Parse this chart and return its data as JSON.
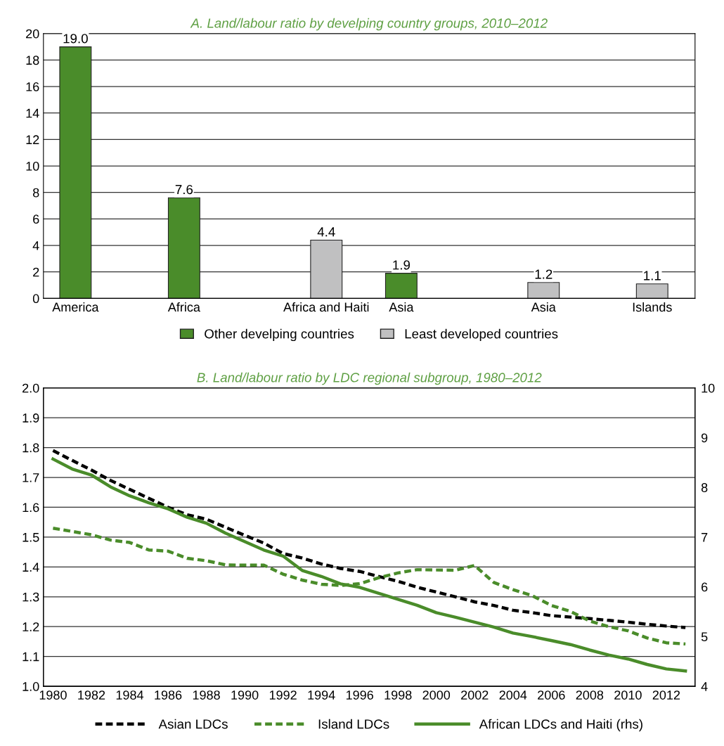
{
  "chart_data": [
    {
      "type": "bar",
      "title": "A. Land/labour ratio by develping country groups, 2010–2012",
      "categories": [
        "America",
        "Africa",
        "Africa and Haiti",
        "Asia",
        "Asia",
        "Islands"
      ],
      "series": [
        {
          "name": "Other develping countries",
          "color": "#4a8c2a",
          "values": [
            19.0,
            7.6,
            null,
            1.9,
            null,
            null
          ],
          "value_labels": [
            "19.0",
            "7.6",
            null,
            "1.9",
            null,
            null
          ]
        },
        {
          "name": "Least developed countries",
          "color": "#c0c0c1",
          "values": [
            null,
            null,
            4.4,
            null,
            1.2,
            1.1
          ],
          "value_labels": [
            null,
            null,
            "4.4",
            null,
            "1.2",
            "1.1"
          ]
        }
      ],
      "ylim": [
        0,
        20
      ],
      "yticks": [
        0,
        2,
        4,
        6,
        8,
        10,
        12,
        14,
        16,
        18,
        20
      ],
      "grid": "y",
      "legend": "bottom"
    },
    {
      "type": "line",
      "title": "B. Land/labour ratio by LDC regional subgroup, 1980–2012",
      "x": [
        1980,
        1981,
        1982,
        1983,
        1984,
        1985,
        1986,
        1987,
        1988,
        1989,
        1990,
        1991,
        1992,
        1993,
        1994,
        1995,
        1996,
        1997,
        1998,
        1999,
        2000,
        2001,
        2002,
        2003,
        2004,
        2005,
        2006,
        2007,
        2008,
        2009,
        2010,
        2011,
        2012,
        2013
      ],
      "series": [
        {
          "name": "Asian LDCs",
          "color": "#000000",
          "line_style": "dashed",
          "values": [
            1.79,
            1.757,
            1.725,
            1.69,
            1.66,
            1.63,
            1.6,
            1.575,
            1.56,
            1.533,
            1.506,
            1.48,
            1.445,
            1.43,
            1.41,
            1.395,
            1.385,
            1.368,
            1.352,
            1.332,
            1.316,
            1.3,
            1.283,
            1.271,
            1.255,
            1.247,
            1.237,
            1.232,
            1.227,
            1.221,
            1.215,
            1.208,
            1.202,
            1.197
          ]
        },
        {
          "name": "Island LDCs",
          "color": "#4a8c2a",
          "line_style": "dashed",
          "values": [
            1.53,
            1.519,
            1.508,
            1.49,
            1.482,
            1.457,
            1.453,
            1.429,
            1.421,
            1.407,
            1.406,
            1.406,
            1.376,
            1.356,
            1.342,
            1.338,
            1.344,
            1.364,
            1.38,
            1.391,
            1.39,
            1.389,
            1.405,
            1.348,
            1.324,
            1.304,
            1.271,
            1.251,
            1.219,
            1.2,
            1.186,
            1.162,
            1.146,
            1.142
          ]
        },
        {
          "name": "African LDCs and Haiti (rhs)",
          "color": "#4a8c2a",
          "line_style": "solid",
          "axis": "y2",
          "values": [
            8.57,
            8.37,
            8.25,
            8.01,
            7.83,
            7.69,
            7.57,
            7.4,
            7.28,
            7.08,
            6.91,
            6.74,
            6.62,
            6.33,
            6.21,
            6.06,
            5.99,
            5.87,
            5.75,
            5.63,
            5.48,
            5.39,
            5.29,
            5.19,
            5.07,
            5.0,
            4.92,
            4.84,
            4.73,
            4.63,
            4.55,
            4.44,
            4.35,
            4.31
          ]
        }
      ],
      "xlim": [
        1979.5,
        2013.5
      ],
      "xticks": [
        1980,
        1982,
        1984,
        1986,
        1988,
        1990,
        1992,
        1994,
        1996,
        1998,
        2000,
        2002,
        2004,
        2006,
        2008,
        2010,
        2012
      ],
      "ylim": [
        1.0,
        2.0
      ],
      "yticks": [
        {
          "value": 1.0,
          "label": "1.0"
        },
        {
          "value": 1.1,
          "label": "1.1"
        },
        {
          "value": 1.2,
          "label": "1.2"
        },
        {
          "value": 1.3,
          "label": "1.3"
        },
        {
          "value": 1.4,
          "label": "1.4"
        },
        {
          "value": 1.5,
          "label": "1.5"
        },
        {
          "value": 1.6,
          "label": "1.6"
        },
        {
          "value": 1.7,
          "label": "1.7"
        },
        {
          "value": 1.8,
          "label": "1.8"
        },
        {
          "value": 1.9,
          "label": "1.9"
        },
        {
          "value": 2.0,
          "label": "2.0"
        }
      ],
      "y2lim": [
        4,
        10
      ],
      "y2ticks": [
        4,
        5,
        6,
        7,
        8,
        9,
        10
      ],
      "grid": "y",
      "legend": "bottom"
    }
  ]
}
